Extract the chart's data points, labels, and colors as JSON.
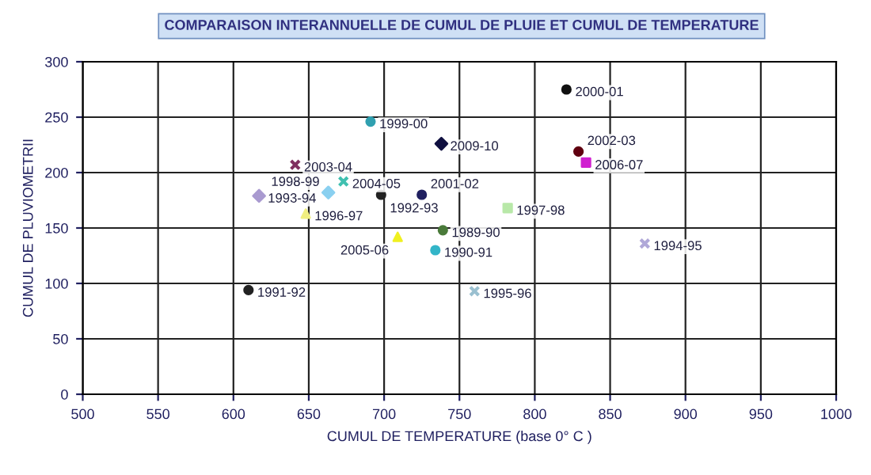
{
  "chart_data": {
    "type": "scatter",
    "title": "COMPARAISON INTERANNUELLE DE CUMUL DE PLUIE ET CUMUL DE TEMPERATURE",
    "xlabel": "CUMUL DE TEMPERATURE (base 0° C )",
    "ylabel": "CUMUL DE PLUVIOMETRII",
    "xlim": [
      500,
      1000
    ],
    "xticks": [
      500,
      550,
      600,
      650,
      700,
      750,
      800,
      850,
      900,
      950,
      1000
    ],
    "ylim": [
      0,
      300
    ],
    "yticks": [
      0,
      50,
      100,
      150,
      200,
      250,
      300
    ],
    "grid": true,
    "legend": false,
    "series": [
      {
        "name": "1989-90",
        "color": "#4a7a3a",
        "marker": "circle",
        "x": [
          739
        ],
        "values": [
          148
        ]
      },
      {
        "name": "1990-91",
        "color": "#33b5c8",
        "marker": "circle",
        "x": [
          734
        ],
        "values": [
          130
        ]
      },
      {
        "name": "1991-92",
        "color": "#222222",
        "marker": "circle",
        "x": [
          610
        ],
        "values": [
          94
        ]
      },
      {
        "name": "1992-93",
        "color": "#222222",
        "marker": "circle",
        "x": [
          698
        ],
        "values": [
          180
        ]
      },
      {
        "name": "1993-94",
        "color": "#a99ad0",
        "marker": "diamond",
        "x": [
          617
        ],
        "values": [
          179
        ]
      },
      {
        "name": "1994-95",
        "color": "#b0a8d8",
        "marker": "cross",
        "x": [
          873
        ],
        "values": [
          136
        ]
      },
      {
        "name": "1995-96",
        "color": "#9ac0d0",
        "marker": "cross",
        "x": [
          760
        ],
        "values": [
          93
        ]
      },
      {
        "name": "1996-97",
        "color": "#f0ee80",
        "marker": "triangle",
        "x": [
          648
        ],
        "values": [
          163
        ]
      },
      {
        "name": "1997-98",
        "color": "#b8e8a8",
        "marker": "square",
        "x": [
          782
        ],
        "values": [
          168
        ]
      },
      {
        "name": "1998-99",
        "color": "#8ad0f0",
        "marker": "diamond",
        "x": [
          663
        ],
        "values": [
          182
        ]
      },
      {
        "name": "1999-00",
        "color": "#30a0b0",
        "marker": "circle",
        "x": [
          691
        ],
        "values": [
          246
        ]
      },
      {
        "name": "2000-01",
        "color": "#111111",
        "marker": "circle",
        "x": [
          821
        ],
        "values": [
          275
        ]
      },
      {
        "name": "2001-02",
        "color": "#202060",
        "marker": "circle",
        "x": [
          725
        ],
        "values": [
          180
        ]
      },
      {
        "name": "2002-03",
        "color": "#600010",
        "marker": "circle",
        "x": [
          829
        ],
        "values": [
          219
        ]
      },
      {
        "name": "2003-04",
        "color": "#803060",
        "marker": "cross",
        "x": [
          641
        ],
        "values": [
          207
        ]
      },
      {
        "name": "2004-05",
        "color": "#40c0b0",
        "marker": "cross",
        "x": [
          673
        ],
        "values": [
          192
        ]
      },
      {
        "name": "2005-06",
        "color": "#f0f020",
        "marker": "triangle",
        "x": [
          709
        ],
        "values": [
          142
        ]
      },
      {
        "name": "2006-07",
        "color": "#d020d0",
        "marker": "square",
        "x": [
          834
        ],
        "values": [
          209
        ]
      },
      {
        "name": "2009-10",
        "color": "#101040",
        "marker": "diamond",
        "x": [
          738
        ],
        "values": [
          226
        ]
      }
    ]
  }
}
